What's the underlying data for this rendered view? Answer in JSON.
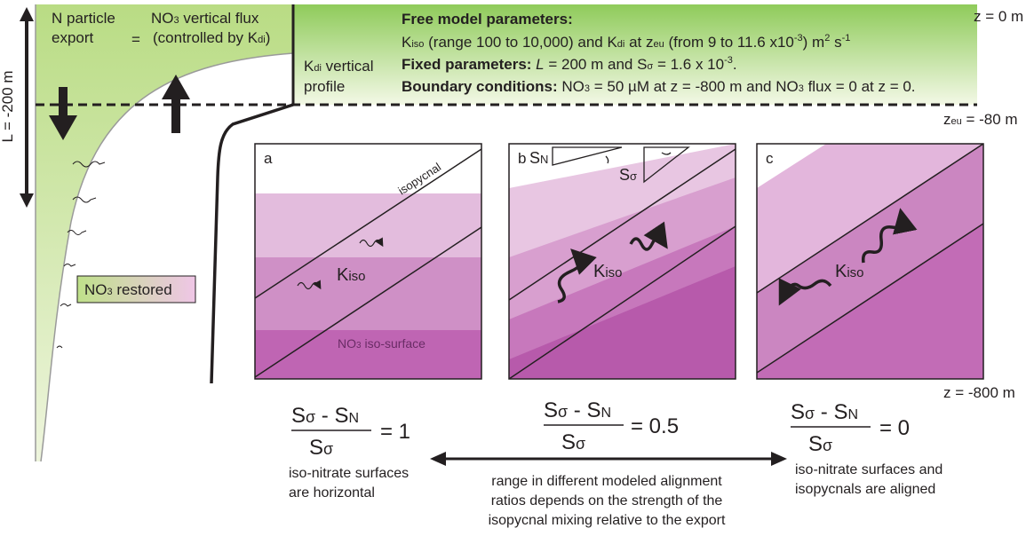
{
  "depths": {
    "surface": "z = 0 m",
    "euphotic": [
      "z",
      "eu",
      " = -80 m"
    ],
    "bottom": "z = -800 m",
    "mixed_length": "L = -200 m"
  },
  "flux_balance": {
    "export": [
      "N particle",
      "export"
    ],
    "equals": "=",
    "vertical_flux": [
      "NO",
      "3",
      " vertical flux",
      "(controlled by K",
      "di",
      ")"
    ]
  },
  "kdi_profile": [
    "K",
    "di",
    " vertical",
    "profile"
  ],
  "header": {
    "free": {
      "title": "Free model parameters:",
      "line": [
        "K",
        "iso",
        " (range 100 to 10,000) and K",
        "di",
        " at z",
        "eu",
        " (from 9 to 11.6 x10",
        "-3",
        ") m",
        "2",
        " s",
        "-1"
      ]
    },
    "fixed": {
      "title": "Fixed parameters:",
      "line": [
        " L",
        " = 200 m and S",
        "σ",
        " = 1.6 x 10",
        "-3",
        "."
      ]
    },
    "boundary": {
      "title": "Boundary conditions:",
      "line": [
        " NO",
        "3",
        " = 50 µM at z = -800 m and NO",
        "3",
        " flux = 0 at z = 0."
      ]
    }
  },
  "restored": [
    "NO",
    "3",
    " restored"
  ],
  "panels": [
    {
      "label": "a",
      "isopycnal": "isopycnal",
      "kiso": [
        "K",
        "iso"
      ],
      "iso_surface": [
        "NO",
        "3",
        " iso-surface"
      ],
      "ratio": {
        "numerator": [
          "S",
          "σ",
          " - S",
          "N"
        ],
        "denominator": [
          "S",
          "σ"
        ],
        "result": "= 1"
      },
      "caption": [
        "iso-nitrate surfaces",
        "are horizontal"
      ]
    },
    {
      "label": "b",
      "slope_n": [
        "S",
        "N"
      ],
      "slope_sigma": [
        "S",
        "σ"
      ],
      "kiso": [
        "K",
        "iso"
      ],
      "ratio": {
        "numerator": [
          "S",
          "σ",
          " - S",
          "N"
        ],
        "denominator": [
          "S",
          "σ"
        ],
        "result": "= 0.5"
      }
    },
    {
      "label": "c",
      "kiso": [
        "K",
        "iso"
      ],
      "ratio": {
        "numerator": [
          "S",
          "σ",
          " - S",
          "N"
        ],
        "denominator": [
          "S",
          "σ"
        ],
        "result": "= 0"
      },
      "caption": [
        "iso-nitrate surfaces and",
        "isopycnals are aligned"
      ]
    }
  ],
  "range_note": [
    "range in different modeled alignment",
    "ratios depends on the strength of the",
    "isopycnal mixing relative to the export"
  ]
}
